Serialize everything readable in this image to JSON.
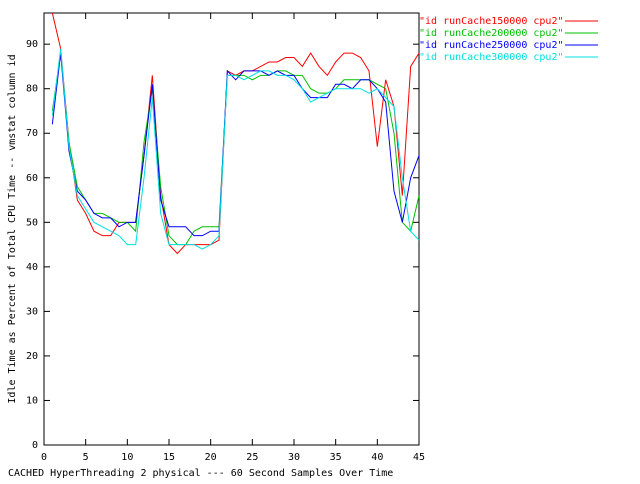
{
  "chart_data": {
    "type": "line",
    "x_label": "CACHED HyperThreading 2 physical --- 60 Second Samples Over Time",
    "y_label": "Idle Time as Percent of Total CPU Time -- vmstat column id",
    "x": [
      1,
      2,
      3,
      4,
      5,
      6,
      7,
      8,
      9,
      10,
      11,
      12,
      13,
      14,
      15,
      16,
      17,
      18,
      19,
      20,
      21,
      22,
      23,
      24,
      25,
      26,
      27,
      28,
      29,
      30,
      31,
      32,
      33,
      34,
      35,
      36,
      37,
      38,
      39,
      40,
      41,
      42,
      43,
      44,
      45
    ],
    "xlim": [
      0,
      45
    ],
    "ylim": [
      0,
      97
    ],
    "xticks": [
      0,
      5,
      10,
      15,
      20,
      25,
      30,
      35,
      40,
      45
    ],
    "yticks": [
      0,
      10,
      20,
      30,
      40,
      50,
      60,
      70,
      80,
      90
    ],
    "series": [
      {
        "name": "\"id runCache150000 cpu2\"",
        "color": "#ff0000",
        "values": [
          97,
          89,
          68,
          55,
          52,
          48,
          47,
          47,
          50,
          50,
          50,
          65,
          83,
          56,
          45,
          43,
          45,
          45,
          45,
          45,
          46,
          84,
          83,
          84,
          84,
          85,
          86,
          86,
          87,
          87,
          85,
          88,
          85,
          83,
          86,
          88,
          88,
          87,
          84,
          67,
          82,
          76,
          56,
          85,
          88
        ]
      },
      {
        "name": "\"id runCache200000 cpu2\"",
        "color": "#00c000",
        "values": [
          75,
          88,
          68,
          58,
          55,
          52,
          52,
          51,
          50,
          50,
          48,
          68,
          80,
          58,
          47,
          45,
          45,
          48,
          49,
          49,
          49,
          83,
          83,
          83,
          82,
          83,
          83,
          84,
          84,
          83,
          83,
          80,
          79,
          79,
          80,
          82,
          82,
          82,
          82,
          81,
          80,
          70,
          50,
          48,
          56
        ]
      },
      {
        "name": "\"id runCache250000 cpu2\"",
        "color": "#0000ff",
        "values": [
          72,
          88,
          66,
          57,
          55,
          52,
          51,
          51,
          49,
          50,
          50,
          65,
          81,
          55,
          49,
          49,
          49,
          47,
          47,
          48,
          48,
          84,
          82,
          84,
          84,
          84,
          83,
          84,
          83,
          83,
          80,
          78,
          78,
          78,
          81,
          81,
          80,
          82,
          82,
          80,
          77,
          57,
          50,
          60,
          65
        ]
      },
      {
        "name": "\"id runCache300000 cpu2\"",
        "color": "#00e0e0",
        "values": [
          74,
          89,
          67,
          56,
          53,
          50,
          49,
          48,
          47,
          45,
          45,
          60,
          78,
          52,
          45,
          45,
          45,
          45,
          44,
          45,
          47,
          83,
          83,
          82,
          83,
          84,
          84,
          83,
          83,
          82,
          80,
          77,
          78,
          79,
          80,
          80,
          80,
          80,
          79,
          80,
          78,
          76,
          60,
          48,
          46
        ]
      }
    ]
  }
}
